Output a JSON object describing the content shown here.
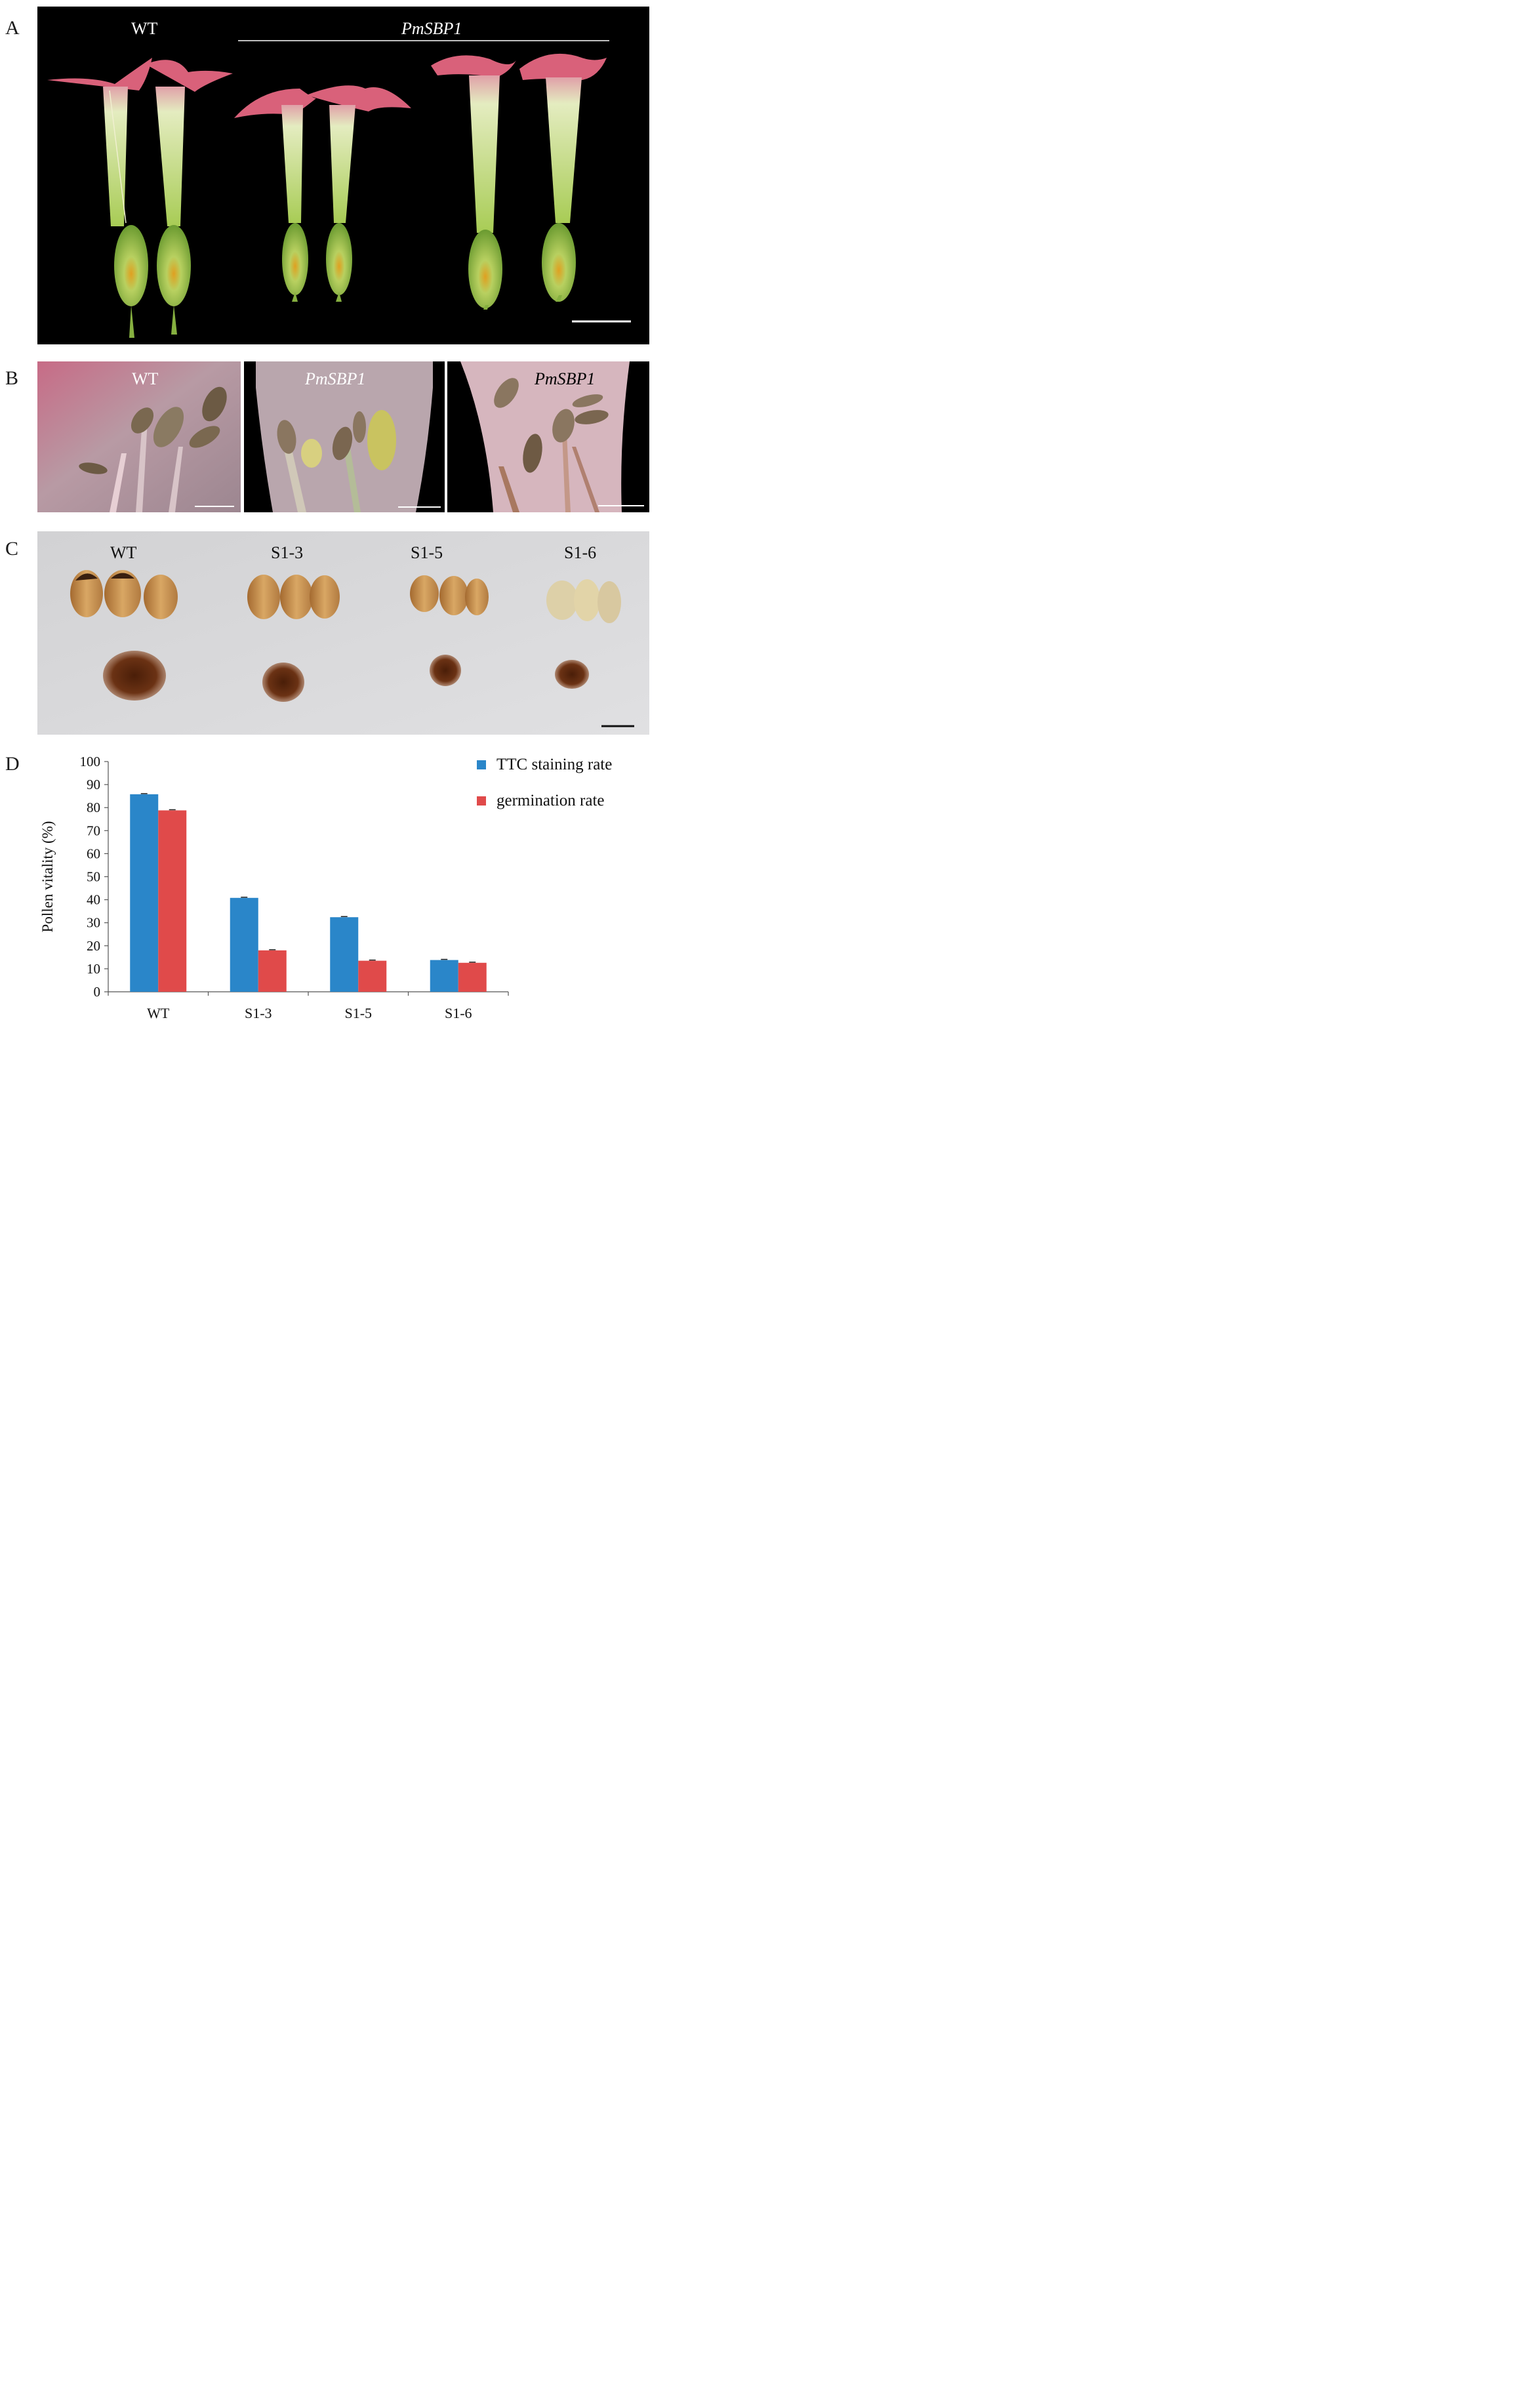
{
  "figure": {
    "panels": {
      "A": {
        "letter": "A",
        "labels": {
          "wt": "WT",
          "mutant": "PmSBP1"
        }
      },
      "B": {
        "letter": "B",
        "labels": {
          "p1": "WT",
          "p2": "PmSBP1",
          "p3": "PmSBP1"
        }
      },
      "C": {
        "letter": "C",
        "labels": [
          "WT",
          "S1-3",
          "S1-5",
          "S1-6"
        ]
      },
      "D": {
        "letter": "D"
      }
    },
    "colors": {
      "ttc": "#2a86c9",
      "germination": "#e04a4a",
      "petal_pink": "#d9617a",
      "tube_green": "#c9dc8e",
      "seed_brown": "#6b3214",
      "capsule": "#c99352"
    }
  },
  "chart_data": {
    "type": "bar",
    "categories": [
      "WT",
      "S1-3",
      "S1-5",
      "S1-6"
    ],
    "series": [
      {
        "name": "TTC staining rate",
        "values": [
          85.8,
          40.8,
          32.4,
          13.8
        ]
      },
      {
        "name": "germination rate",
        "values": [
          78.8,
          18.0,
          13.5,
          12.6
        ]
      }
    ],
    "ylabel": "Pollen vitality (%)",
    "xlabel": "",
    "ylim": [
      0,
      100
    ],
    "yticks": [
      0,
      10,
      20,
      30,
      40,
      50,
      60,
      70,
      80,
      90,
      100
    ],
    "legend": "top-right",
    "grid": false,
    "error_bars": true
  }
}
